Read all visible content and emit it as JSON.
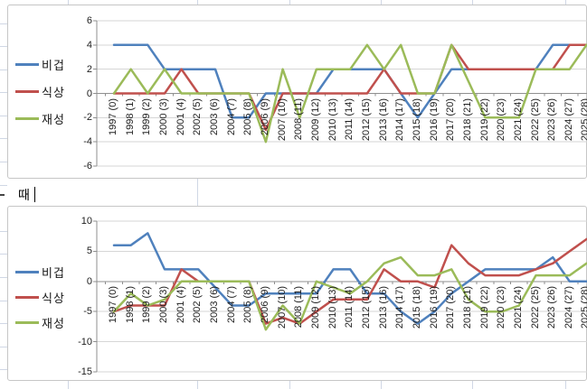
{
  "spreadsheet": {
    "cell_text": "때",
    "cell_text_fragment": "-"
  },
  "chart_data": [
    {
      "type": "line",
      "title": "",
      "legend_position": "left",
      "grid": true,
      "ylim": [
        -6,
        6
      ],
      "y_ticks": [
        6,
        4,
        2,
        0,
        -2,
        -4,
        -6
      ],
      "categories": [
        "1997 (0)",
        "1998 (1)",
        "1999 (2)",
        "2000 (3)",
        "2001 (4)",
        "2002 (5)",
        "2003 (6)",
        "2004 (7)",
        "2005 (8)",
        "2006 (9)",
        "2007 (10)",
        "2008 (11)",
        "2009 (12)",
        "2010 (13)",
        "2011 (14)",
        "2012 (15)",
        "2013 (16)",
        "2014 (17)",
        "2015 (18)",
        "2016 (19)",
        "2017 (20)",
        "2018 (21)",
        "2019 (22)",
        "2020 (23)",
        "2021 (24)",
        "2022 (25)",
        "2023 (26)",
        "2024 (27)",
        "2025 (28)"
      ],
      "series": [
        {
          "name": "비겁",
          "color": "#4F81BD",
          "values": [
            4,
            4,
            4,
            2,
            2,
            2,
            2,
            -2,
            -2,
            0,
            0,
            0,
            0,
            2,
            2,
            2,
            2,
            0,
            -2,
            0,
            2,
            2,
            2,
            2,
            2,
            2,
            4,
            4,
            4
          ]
        },
        {
          "name": "식상",
          "color": "#C0504D",
          "values": [
            0,
            0,
            0,
            0,
            2,
            0,
            0,
            0,
            0,
            -3,
            0,
            0,
            0,
            0,
            0,
            0,
            2,
            0,
            0,
            0,
            4,
            2,
            2,
            2,
            2,
            2,
            2,
            4,
            4
          ]
        },
        {
          "name": "재성",
          "color": "#9BBB59",
          "values": [
            0,
            2,
            0,
            2,
            0,
            0,
            0,
            0,
            0,
            -4,
            2,
            -2,
            2,
            2,
            2,
            4,
            2,
            4,
            0,
            0,
            4,
            1,
            -2,
            -2,
            -2,
            2,
            2,
            2,
            4
          ]
        }
      ]
    },
    {
      "type": "line",
      "title": "",
      "legend_position": "left",
      "grid": true,
      "ylim": [
        -15,
        10
      ],
      "y_ticks": [
        10,
        5,
        0,
        -5,
        -10,
        -15
      ],
      "categories": [
        "1997 (0)",
        "1998 (1)",
        "1999 (2)",
        "2000 (3)",
        "2001 (4)",
        "2002 (5)",
        "2003 (6)",
        "2004 (7)",
        "2005 (8)",
        "2006 (9)",
        "2007 (10)",
        "2008 (11)",
        "2009 (12)",
        "2010 (13)",
        "2011 (14)",
        "2012 (15)",
        "2013 (16)",
        "2014 (17)",
        "2015 (18)",
        "2016 (19)",
        "2017 (20)",
        "2018 (21)",
        "2019 (22)",
        "2020 (23)",
        "2021 (24)",
        "2022 (25)",
        "2023 (26)",
        "2024 (27)",
        "2025 (28)"
      ],
      "series": [
        {
          "name": "비겁",
          "color": "#4F81BD",
          "values": [
            6,
            6,
            8,
            2,
            2,
            2,
            -1,
            -4,
            -4,
            -2,
            -2,
            -2,
            -2,
            2,
            2,
            -2,
            -2,
            -5,
            -7,
            -5,
            -2,
            0,
            2,
            2,
            2,
            2,
            4,
            0,
            0
          ]
        },
        {
          "name": "식상",
          "color": "#C0504D",
          "values": [
            -5,
            -4,
            -4,
            -4,
            2,
            0,
            0,
            0,
            0,
            -7,
            -6,
            -7,
            -5,
            -3,
            -3,
            -3,
            2,
            0,
            0,
            -1,
            6,
            3,
            1,
            1,
            1,
            2,
            3,
            5,
            7
          ]
        },
        {
          "name": "재성",
          "color": "#9BBB59",
          "values": [
            -5,
            -2,
            -4,
            -3,
            0,
            0,
            0,
            0,
            0,
            -8,
            -4,
            -7,
            0,
            -1,
            -2,
            0,
            3,
            4,
            1,
            1,
            2,
            -3,
            -5,
            -5,
            -4,
            1,
            1,
            1,
            3
          ]
        }
      ]
    }
  ]
}
